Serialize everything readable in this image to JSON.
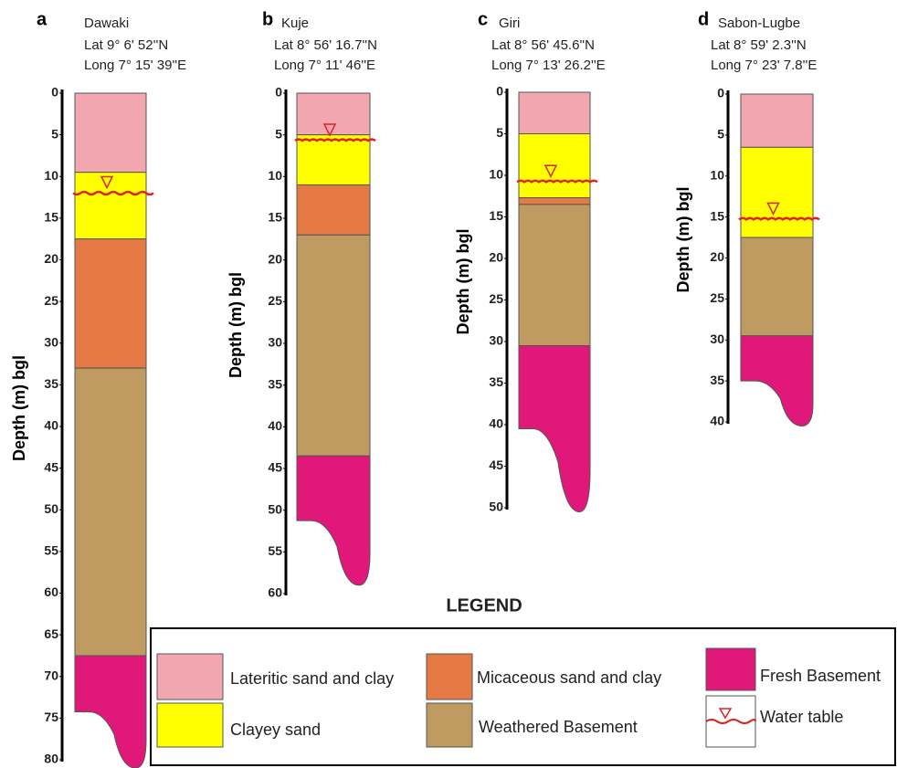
{
  "panels": [
    {
      "letter": "a",
      "name": "Dawaki",
      "lat": "Lat 9° 6' 52''N",
      "long": "Long 7° 15' 39''E",
      "ylabel": "Depth (m) bgl",
      "ylim": [
        0,
        80
      ],
      "yticks": [
        0,
        5,
        10,
        15,
        20,
        25,
        30,
        35,
        40,
        45,
        50,
        55,
        60,
        65,
        70,
        75,
        80
      ],
      "layers": [
        {
          "top": 0,
          "bottom": 9.5,
          "color": "#f2a7b0"
        },
        {
          "top": 9.5,
          "bottom": 17.5,
          "color": "#ffff00"
        },
        {
          "top": 17.5,
          "bottom": 33,
          "color": "#e57a45"
        },
        {
          "top": 33,
          "bottom": 67.5,
          "color": "#bf9b62"
        },
        {
          "top": 67.5,
          "bottom": 81,
          "color": "#e0187a"
        }
      ],
      "water_table": 12
    },
    {
      "letter": "b",
      "name": "Kuje",
      "lat": "Lat 8° 56' 16.7''N",
      "long": "Long 7° 11' 46''E",
      "ylabel": "Depth (m) bgl",
      "ylim": [
        0,
        60
      ],
      "yticks": [
        0,
        5,
        10,
        15,
        20,
        25,
        30,
        35,
        40,
        45,
        50,
        55,
        60
      ],
      "layers": [
        {
          "top": 0,
          "bottom": 5,
          "color": "#f2a7b0"
        },
        {
          "top": 5,
          "bottom": 11,
          "color": "#ffff00"
        },
        {
          "top": 11,
          "bottom": 17,
          "color": "#e57a45"
        },
        {
          "top": 17,
          "bottom": 43.5,
          "color": "#bf9b62"
        },
        {
          "top": 43.5,
          "bottom": 59,
          "color": "#e0187a"
        }
      ],
      "water_table": 5.7
    },
    {
      "letter": "c",
      "name": "Giri",
      "lat": "Lat 8° 56' 45.6''N",
      "long": "Long 7° 13' 26.2''E",
      "ylabel": "Depth (m) bgl",
      "ylim": [
        0,
        50
      ],
      "yticks": [
        0,
        5,
        10,
        15,
        20,
        25,
        30,
        35,
        40,
        45,
        50
      ],
      "layers": [
        {
          "top": 0,
          "bottom": 5,
          "color": "#f2a7b0"
        },
        {
          "top": 5,
          "bottom": 12.7,
          "color": "#ffff00"
        },
        {
          "top": 12.7,
          "bottom": 13.5,
          "color": "#e57a45"
        },
        {
          "top": 13.5,
          "bottom": 30.5,
          "color": "#bf9b62"
        },
        {
          "top": 30.5,
          "bottom": 50.5,
          "color": "#e0187a"
        }
      ],
      "water_table": 10.8
    },
    {
      "letter": "d",
      "name": "Sabon-Lugbe",
      "lat": "Lat 8° 59' 2.3''N",
      "long": "Long 7° 23' 7.8''E",
      "ylabel": "Depth (m) bgl",
      "ylim": [
        0,
        40
      ],
      "yticks": [
        0,
        5,
        10,
        15,
        20,
        25,
        30,
        35,
        40
      ],
      "layers": [
        {
          "top": 0,
          "bottom": 6.5,
          "color": "#f2a7b0"
        },
        {
          "top": 6.5,
          "bottom": 17.5,
          "color": "#ffff00"
        },
        {
          "top": 17.5,
          "bottom": 29.5,
          "color": "#bf9b62"
        },
        {
          "top": 29.5,
          "bottom": 40.5,
          "color": "#e0187a"
        }
      ],
      "water_table": 15.3
    }
  ],
  "legend": {
    "title": "LEGEND",
    "items": [
      {
        "label": "Lateritic sand  and clay",
        "color": "#f2a7b0"
      },
      {
        "label": "Clayey sand",
        "color": "#ffff00"
      },
      {
        "label": "Micaceous sand and clay",
        "color": "#e57a45"
      },
      {
        "label": "Weathered Basement",
        "color": "#bf9b62"
      },
      {
        "label": "Fresh Basement",
        "color": "#e0187a"
      },
      {
        "label": "Water table"
      }
    ]
  }
}
